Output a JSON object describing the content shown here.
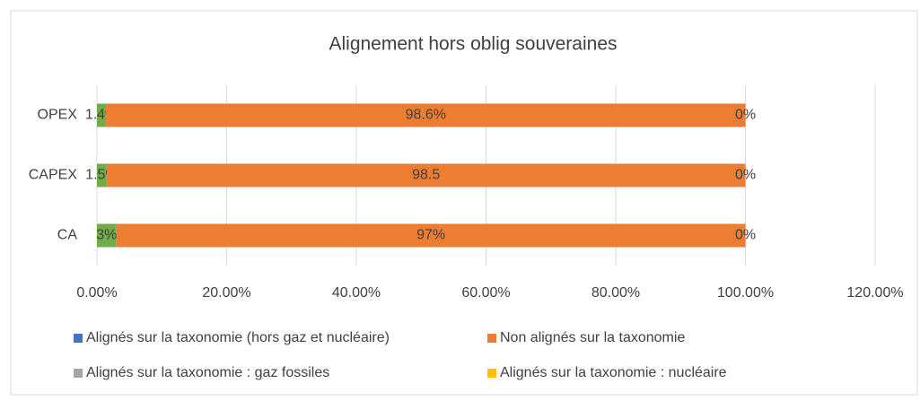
{
  "chart_data": {
    "type": "stacked_barh",
    "title": "Alignement hors oblig souveraines",
    "categories": [
      "CA",
      "CAPEX",
      "OPEX"
    ],
    "series": [
      {
        "name": "Alignés sur la taxonomie (hors gaz et nucléaire)",
        "color": "#70ad47",
        "legend_color": "#4472c4",
        "values": [
          3,
          1.5,
          1.4
        ],
        "value_labels": [
          "3%",
          "1.5%",
          "1.4%"
        ]
      },
      {
        "name": "Non alignés sur la taxonomie",
        "color": "#ed7d31",
        "values": [
          97,
          98.5,
          98.6
        ],
        "value_labels": [
          "97%",
          "98.5",
          "98.6%"
        ]
      },
      {
        "name": "Alignés sur la taxonomie : gaz fossiles",
        "color": "#a5a5a5",
        "values": [
          0,
          0,
          0
        ],
        "value_labels": [
          "0%",
          "0%",
          "0%"
        ]
      },
      {
        "name": "Alignés sur la taxonomie  : nucléaire",
        "color": "#ffc000",
        "values": [
          0,
          0,
          0
        ]
      }
    ],
    "xlim": [
      0,
      120
    ],
    "xticks": [
      {
        "value": 0,
        "label": "0.00%"
      },
      {
        "value": 20,
        "label": "20.00%"
      },
      {
        "value": 40,
        "label": "40.00%"
      },
      {
        "value": 60,
        "label": "60.00%"
      },
      {
        "value": 80,
        "label": "80.00%"
      },
      {
        "value": 100,
        "label": "100.00%"
      },
      {
        "value": 120,
        "label": "120.00%"
      }
    ],
    "grid": true,
    "legend": "bottom"
  }
}
